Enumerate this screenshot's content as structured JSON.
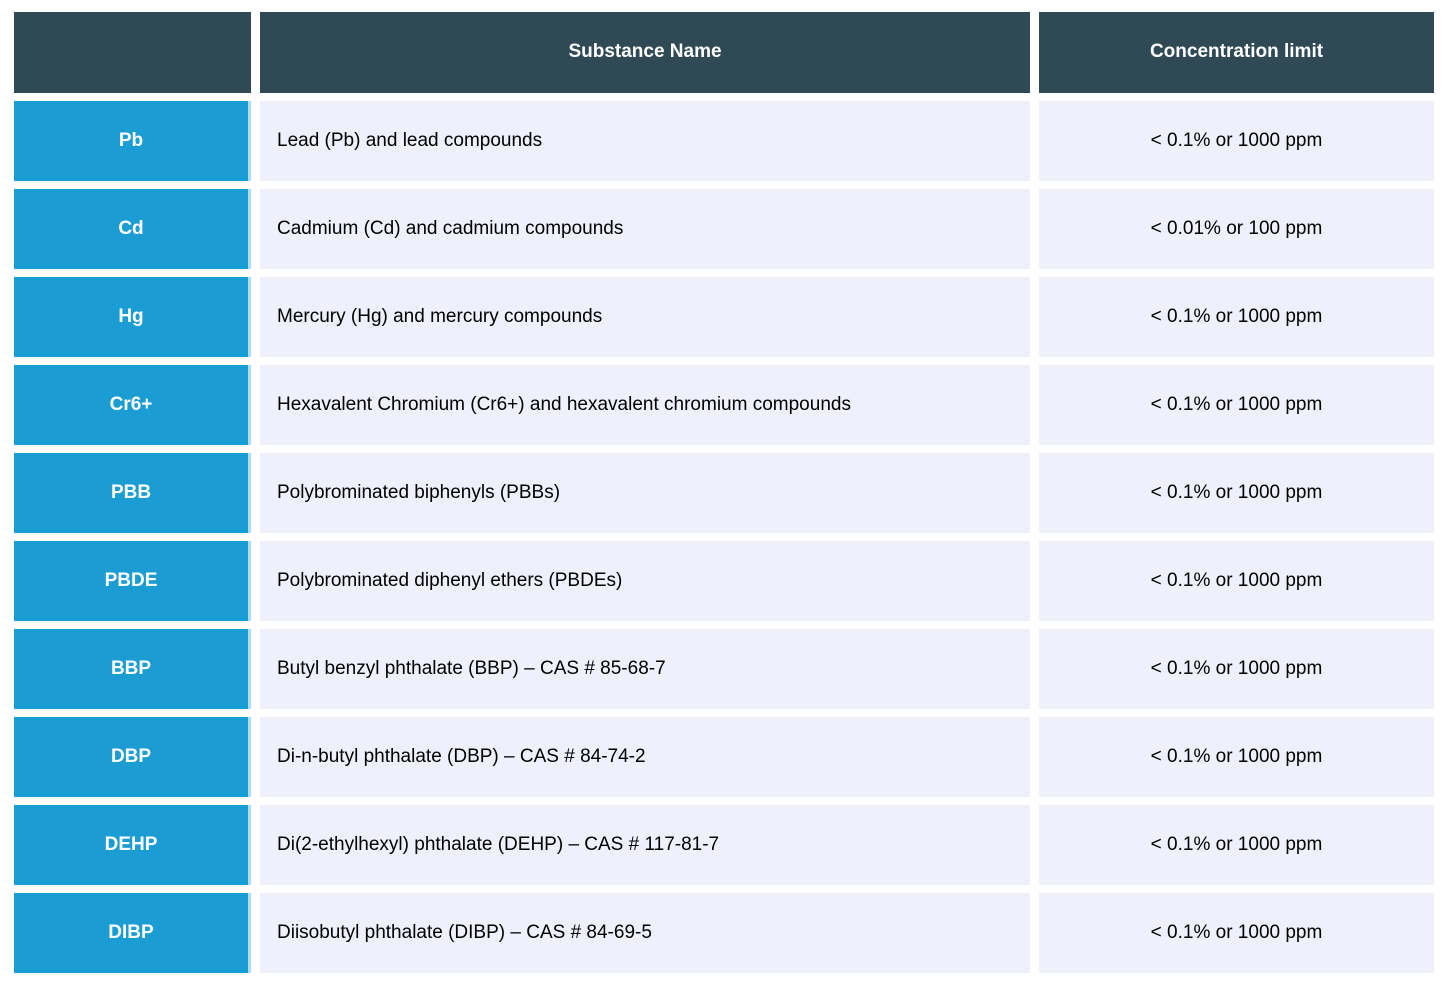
{
  "table": {
    "title_semantic": "RoHS restricted substances table",
    "headers": {
      "abbr": "",
      "substance": "Substance Name",
      "limit": "Concentration limit"
    },
    "rows": [
      {
        "abbr": "Pb",
        "substance": "Lead (Pb) and lead compounds",
        "limit": "< 0.1% or 1000 ppm"
      },
      {
        "abbr": "Cd",
        "substance": "Cadmium (Cd) and cadmium compounds",
        "limit": "< 0.01% or 100 ppm"
      },
      {
        "abbr": "Hg",
        "substance": "Mercury (Hg) and mercury compounds",
        "limit": "< 0.1% or 1000 ppm"
      },
      {
        "abbr": "Cr6+",
        "substance": "Hexavalent Chromium (Cr6+) and hexavalent chromium compounds",
        "limit": "< 0.1% or 1000 ppm"
      },
      {
        "abbr": "PBB",
        "substance": "Polybrominated biphenyls (PBBs)",
        "limit": "< 0.1% or 1000 ppm"
      },
      {
        "abbr": "PBDE",
        "substance": "Polybrominated diphenyl ethers (PBDEs)",
        "limit": "< 0.1% or 1000 ppm"
      },
      {
        "abbr": "BBP",
        "substance": "Butyl benzyl phthalate (BBP) – CAS # 85-68-7",
        "limit": "< 0.1% or 1000 ppm"
      },
      {
        "abbr": "DBP",
        "substance": "Di-n-butyl phthalate (DBP) – CAS # 84-74-2",
        "limit": "< 0.1% or 1000 ppm"
      },
      {
        "abbr": "DEHP",
        "substance": "Di(2-ethylhexyl) phthalate (DEHP) – CAS # 117-81-7",
        "limit": "< 0.1% or 1000 ppm"
      },
      {
        "abbr": "DIBP",
        "substance": "Diisobutyl phthalate (DIBP) – CAS # 84-69-5",
        "limit": "< 0.1% or 1000 ppm"
      }
    ],
    "colors": {
      "header_bg": "#2F4A55",
      "header_text": "#FFFFFF",
      "abbr_bg": "#1B9DD4",
      "abbr_border": "#A9DFF1",
      "abbr_text": "#FFFFFF",
      "row_bg": "#EEF0FB",
      "body_text": "#000000",
      "page_bg": "#FFFFFF"
    }
  }
}
